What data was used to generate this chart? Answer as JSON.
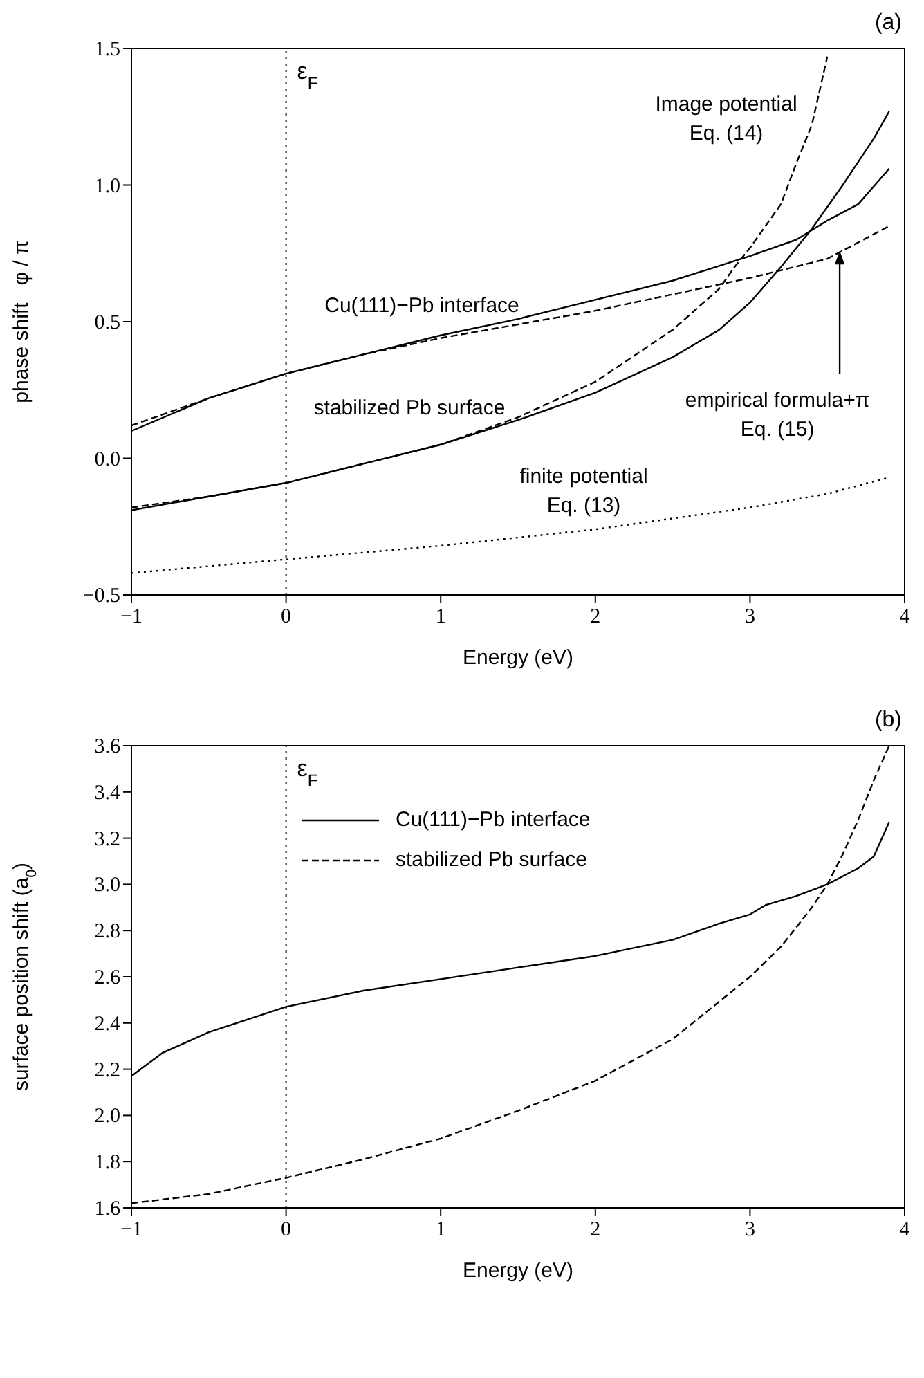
{
  "chart_data": [
    {
      "type": "line",
      "title": "(a)",
      "xlabel": "Energy (eV)",
      "ylabel": "phase shift   φ / π",
      "marker": "none",
      "xlim": [
        -1,
        4
      ],
      "xticks": [
        {
          "value": -1,
          "label": "−1"
        },
        0,
        1,
        2,
        3,
        4
      ],
      "ylim": [
        -0.5,
        1.5
      ],
      "yticks": [
        {
          "value": -0.5,
          "label": "−0.5"
        },
        {
          "value": 0,
          "label": "0.0"
        },
        0.5,
        {
          "value": 1,
          "label": "1.0"
        },
        1.5
      ],
      "ref_lines": [
        {
          "axis": "x",
          "value": 0,
          "label": "ε$_{F}$",
          "line_style": "dotted"
        }
      ],
      "series": [
        {
          "color": "#000000",
          "line_style": "solid",
          "x": [
            -1,
            -0.5,
            0,
            0.5,
            1,
            1.5,
            2,
            2.5,
            3,
            3.3,
            3.5,
            3.7,
            3.9
          ],
          "values": [
            0.1,
            0.22,
            0.31,
            0.38,
            0.45,
            0.51,
            0.58,
            0.65,
            0.74,
            0.8,
            0.87,
            0.93,
            1.06
          ]
        },
        {
          "color": "#000000",
          "line_style": "dashed",
          "x": [
            -1,
            -0.5,
            0,
            0.5,
            1,
            1.5,
            2,
            2.5,
            3,
            3.5,
            3.9
          ],
          "values": [
            0.12,
            0.22,
            0.31,
            0.38,
            0.44,
            0.49,
            0.54,
            0.6,
            0.66,
            0.73,
            0.85
          ]
        },
        {
          "color": "#000000",
          "line_style": "solid",
          "x": [
            -1,
            -0.5,
            0,
            0.5,
            1,
            1.5,
            2,
            2.5,
            2.8,
            3,
            3.2,
            3.4,
            3.6,
            3.8,
            3.9
          ],
          "values": [
            -0.19,
            -0.14,
            -0.09,
            -0.02,
            0.05,
            0.14,
            0.24,
            0.37,
            0.47,
            0.57,
            0.7,
            0.84,
            1.0,
            1.17,
            1.27
          ]
        },
        {
          "color": "#000000",
          "line_style": "dashed",
          "x": [
            -1,
            -0.5,
            0,
            0.5,
            1,
            1.5,
            2,
            2.5,
            2.8,
            2.9,
            3,
            3.2,
            3.3,
            3.4,
            3.5
          ],
          "values": [
            -0.18,
            -0.14,
            -0.09,
            -0.02,
            0.05,
            0.15,
            0.28,
            0.47,
            0.62,
            0.7,
            0.77,
            0.93,
            1.08,
            1.22,
            1.47
          ]
        },
        {
          "color": "#000000",
          "line_style": "dotted",
          "x": [
            -1,
            0,
            1,
            2,
            3,
            3.5,
            3.9
          ],
          "values": [
            -0.42,
            -0.37,
            -0.32,
            -0.26,
            -0.18,
            -0.13,
            -0.07
          ]
        }
      ],
      "annotations": [
        "Image potential\nEq. (14)",
        "Cu(111)−Pb interface",
        "stabilized Pb surface",
        "finite potential\nEq. (13)",
        {
          "text": "empirical formula+π\nEq. (15)",
          "x": 3.58,
          "y": 0.76
        }
      ]
    },
    {
      "type": "line",
      "title": "(b)",
      "xlabel": "Energy (eV)",
      "ylabel": "surface position shift (a$_{0}$)",
      "marker": "none",
      "legend": "top",
      "xlim": [
        -1,
        4
      ],
      "xticks": [
        {
          "value": -1,
          "label": "−1"
        },
        0,
        1,
        2,
        3,
        4
      ],
      "ylim": [
        1.6,
        3.6
      ],
      "yticks": [
        1.6,
        1.8,
        {
          "value": 2,
          "label": "2.0"
        },
        2.2,
        2.4,
        2.6,
        2.8,
        {
          "value": 3,
          "label": "3.0"
        },
        3.2,
        3.4,
        3.6
      ],
      "ref_lines": [
        {
          "axis": "x",
          "value": 0,
          "label": "ε$_{F}$",
          "line_style": "dotted"
        }
      ],
      "series": [
        {
          "name": "Cu(111)−Pb interface",
          "color": "#000000",
          "line_style": "solid",
          "x": [
            -1,
            -0.8,
            -0.5,
            0,
            0.5,
            1,
            1.5,
            2,
            2.5,
            2.8,
            3,
            3.1,
            3.3,
            3.5,
            3.7,
            3.8,
            3.9
          ],
          "values": [
            2.17,
            2.27,
            2.36,
            2.47,
            2.54,
            2.59,
            2.64,
            2.69,
            2.76,
            2.83,
            2.87,
            2.91,
            2.95,
            3.0,
            3.07,
            3.12,
            3.27
          ]
        },
        {
          "name": "stabilized Pb surface",
          "color": "#000000",
          "line_style": "dashed",
          "x": [
            -1,
            -0.5,
            0,
            0.5,
            1,
            1.5,
            2,
            2.5,
            3,
            3.2,
            3.4,
            3.5,
            3.6,
            3.7,
            3.8,
            3.9
          ],
          "values": [
            1.62,
            1.66,
            1.73,
            1.81,
            1.9,
            2.02,
            2.15,
            2.33,
            2.6,
            2.73,
            2.9,
            3.0,
            3.13,
            3.28,
            3.45,
            3.6
          ]
        }
      ]
    }
  ]
}
